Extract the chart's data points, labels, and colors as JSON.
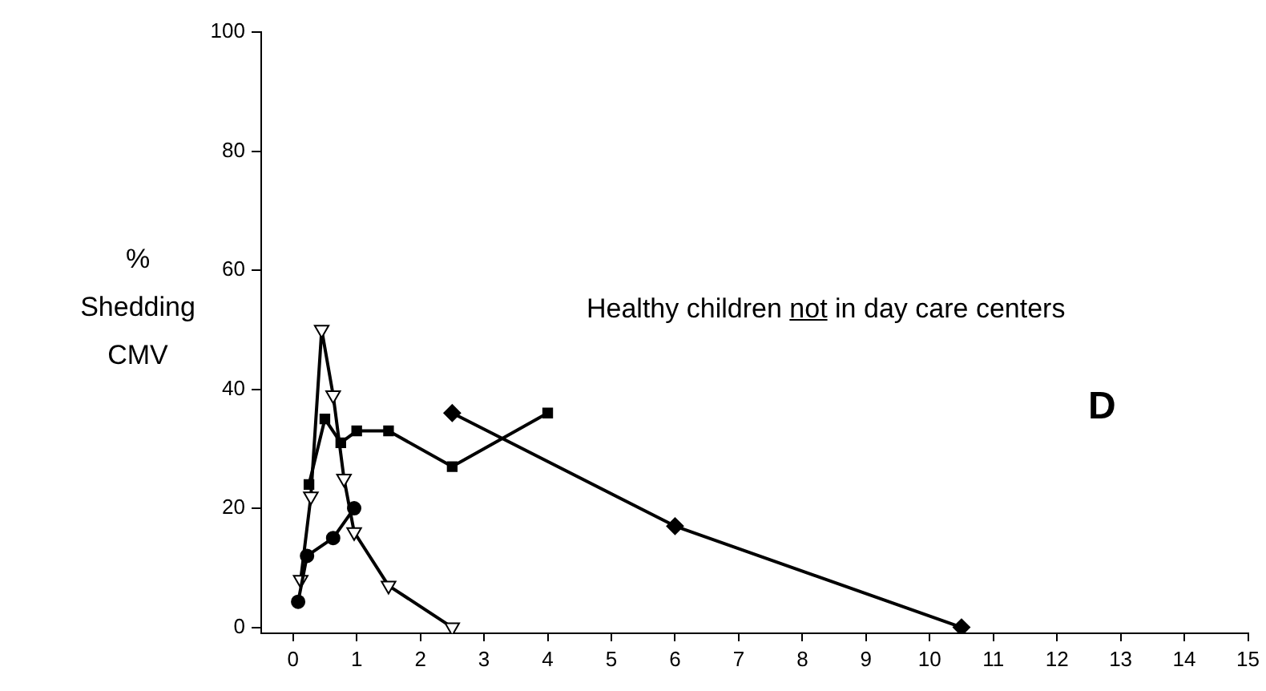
{
  "chart_data": {
    "type": "line",
    "ylabel": "% Shedding CMV",
    "xlim": [
      -0.5,
      15
    ],
    "ylim": [
      -1,
      100
    ],
    "xticks": [
      0,
      1,
      2,
      3,
      4,
      5,
      6,
      7,
      8,
      9,
      10,
      11,
      12,
      13,
      14,
      15
    ],
    "yticks": [
      0,
      20,
      40,
      60,
      80,
      100
    ],
    "grid": false,
    "legend": false,
    "line_style": "solid",
    "annotations": [
      {
        "text": "Healthy children not in day care centers"
      },
      {
        "text": "D"
      }
    ],
    "series": [
      {
        "color": "#000000",
        "marker": "circle",
        "x": [
          0.08,
          0.22,
          0.63,
          0.96
        ],
        "values": [
          4.3,
          12,
          15,
          20
        ]
      },
      {
        "color": "#000000",
        "marker": "square",
        "x": [
          0.25,
          0.5,
          0.75,
          1,
          1.5,
          2.5,
          4
        ],
        "values": [
          24,
          35,
          31,
          33,
          33,
          27,
          36
        ]
      },
      {
        "color": "#000000",
        "marker": "triangle",
        "x": [
          0.12,
          0.28,
          0.45,
          0.63,
          0.8,
          0.96,
          1.5,
          2.5
        ],
        "values": [
          8,
          22,
          50,
          39,
          25,
          16,
          7,
          0
        ]
      },
      {
        "color": "#000000",
        "marker": "diamond",
        "x": [
          2.5,
          6,
          10.5
        ],
        "values": [
          36,
          17,
          0
        ]
      }
    ]
  }
}
